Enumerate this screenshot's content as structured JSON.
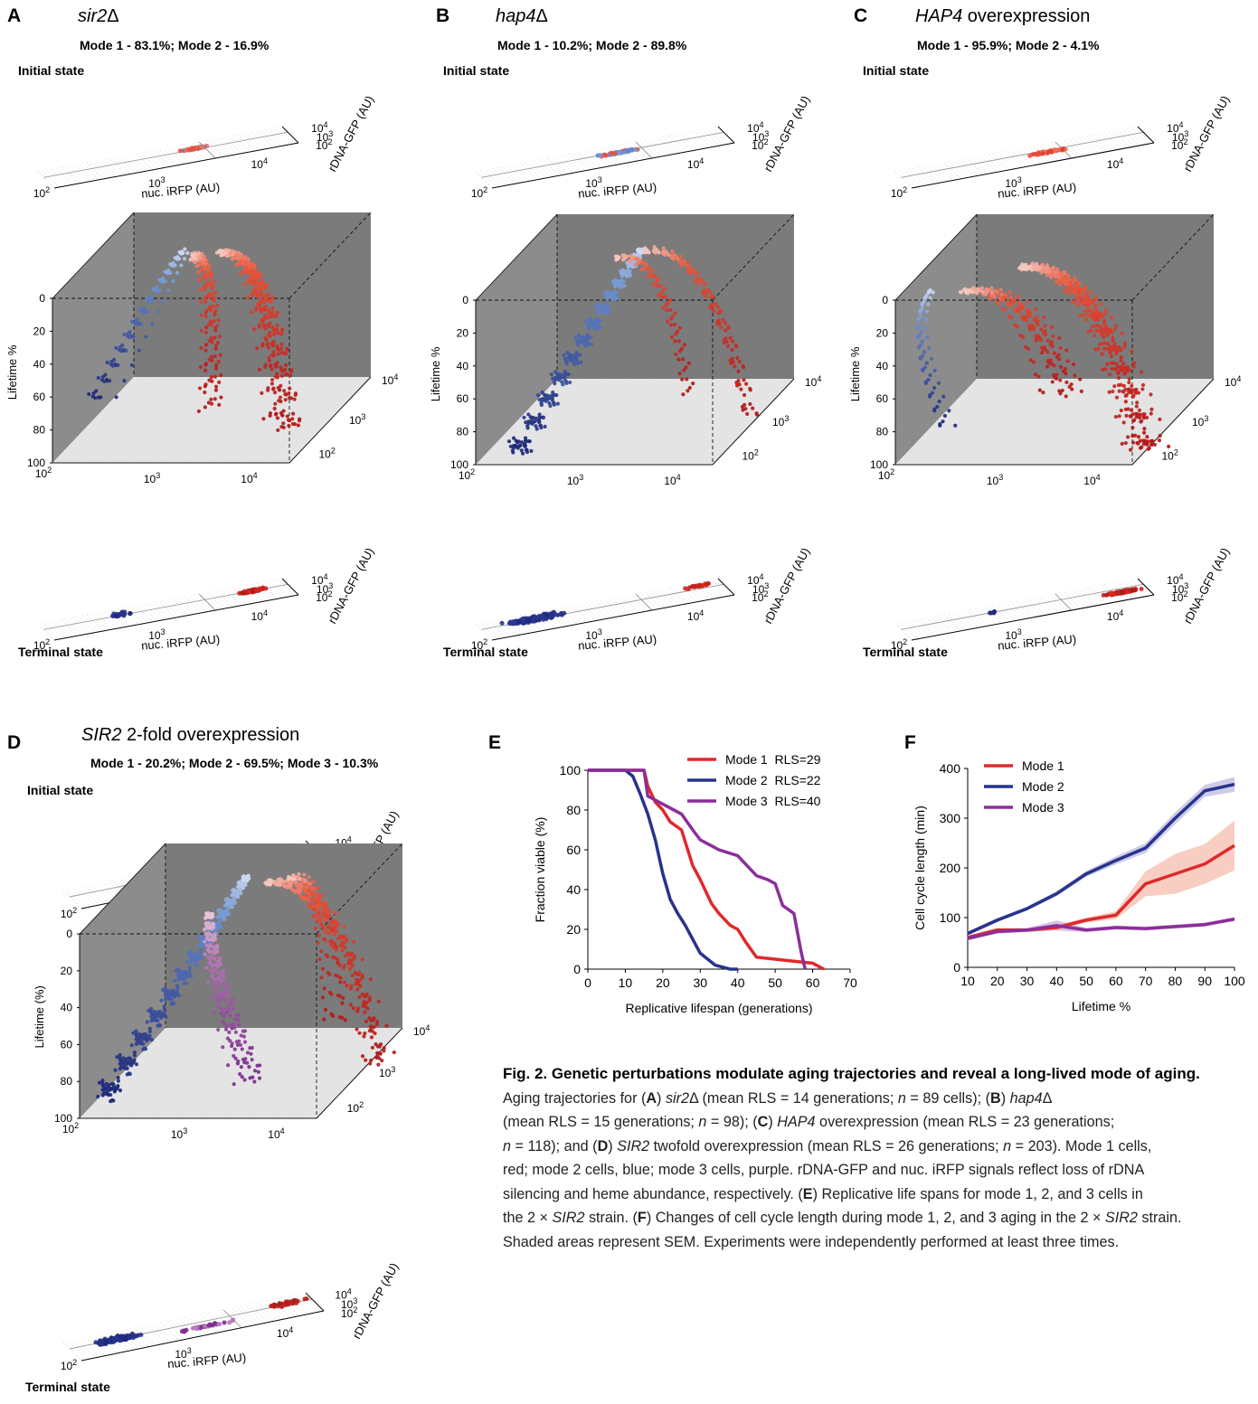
{
  "panels": [
    {
      "letter": "A",
      "title_italic": "sir2",
      "title_rest": "Δ",
      "title_rest_italic": false,
      "modes": "Mode 1 - 83.1%; Mode 2 - 16.9%",
      "initial_label": "Initial state",
      "terminal_label": "Terminal state"
    },
    {
      "letter": "B",
      "title_italic": "hap4",
      "title_rest": "Δ",
      "title_rest_italic": false,
      "modes": "Mode 1 - 10.2%; Mode 2 - 89.8%",
      "initial_label": "Initial state",
      "terminal_label": "Terminal state"
    },
    {
      "letter": "C",
      "title_italic": "HAP4",
      "title_rest": " overexpression",
      "title_rest_italic": false,
      "modes": "Mode 1 - 95.9%; Mode 2 - 4.1%",
      "initial_label": "Initial state",
      "terminal_label": "Terminal state"
    },
    {
      "letter": "D",
      "title_italic": "SIR2",
      "title_rest": " 2-fold overexpression",
      "title_rest_italic": false,
      "modes": "Mode 1 - 20.2%; Mode 2 - 69.5%; Mode 3 - 10.3%",
      "initial_label": "Initial state",
      "terminal_label": "Terminal state"
    }
  ],
  "axes3d": {
    "x_label": "nuc. iRFP (AU)",
    "y_label": "rDNA-GFP (AU)",
    "z_label_abc": "Lifetime %",
    "z_label_d": "Lifetime (%)",
    "x_ticks": [
      "10",
      "10",
      "10"
    ],
    "x_ticks_exp": [
      "2",
      "3",
      "4"
    ],
    "z_ticks": [
      "0",
      "20",
      "40",
      "60",
      "80",
      "100"
    ]
  },
  "mode_colors": {
    "mode1": "#d7261f",
    "mode2": "#28338c",
    "mode3": "#7b2a8e",
    "mode1_light": "#f7b6a8",
    "mode2_light": "#9fb8e2"
  },
  "chart_data": [
    {
      "panel": "E",
      "type": "line",
      "xlabel": "Replicative lifespan (generations)",
      "ylabel": "Fraction viable (%)",
      "xlim": [
        0,
        70
      ],
      "ylim": [
        0,
        100
      ],
      "x_ticks": [
        0,
        10,
        20,
        30,
        40,
        50,
        60,
        70
      ],
      "y_ticks": [
        0,
        20,
        40,
        60,
        80,
        100
      ],
      "legend_placement": "top-right",
      "series": [
        {
          "name": "Mode 1  RLS=29",
          "color": "#e0282b",
          "x": [
            0,
            15,
            16,
            18,
            20,
            22,
            25,
            28,
            30,
            33,
            35,
            38,
            40,
            42,
            45,
            50,
            55,
            60,
            62,
            63
          ],
          "y": [
            100,
            100,
            92,
            84,
            80,
            74,
            70,
            52,
            45,
            33,
            28,
            22,
            20,
            14,
            6,
            5,
            4,
            3,
            1,
            0
          ]
        },
        {
          "name": "Mode 2  RLS=22",
          "color": "#28338c",
          "x": [
            0,
            10,
            12,
            14,
            16,
            18,
            20,
            22,
            24,
            26,
            28,
            30,
            32,
            34,
            36,
            38,
            40
          ],
          "y": [
            100,
            100,
            97,
            88,
            78,
            65,
            48,
            35,
            28,
            22,
            15,
            8,
            5,
            2,
            1,
            0,
            0
          ]
        },
        {
          "name": "Mode 3  RLS=40",
          "color": "#8b2e9a",
          "x": [
            0,
            15,
            16,
            18,
            20,
            25,
            28,
            30,
            33,
            35,
            40,
            45,
            48,
            50,
            52,
            55,
            56,
            57,
            58
          ],
          "y": [
            100,
            100,
            87,
            85,
            83,
            78,
            70,
            65,
            62,
            60,
            57,
            47,
            45,
            43,
            32,
            28,
            18,
            8,
            0
          ]
        }
      ]
    },
    {
      "panel": "F",
      "type": "line",
      "xlabel": "Lifetime %",
      "ylabel": "Cell cycle length (min)",
      "xlim": [
        10,
        100
      ],
      "ylim": [
        0,
        400
      ],
      "x_ticks": [
        10,
        20,
        30,
        40,
        50,
        60,
        70,
        80,
        90,
        100
      ],
      "y_ticks": [
        0,
        100,
        200,
        300,
        400
      ],
      "legend_placement": "top-left",
      "shaded": "SEM",
      "series": [
        {
          "name": "Mode 1",
          "color": "#e0282b",
          "band_color": "#f5b8a8",
          "x": [
            10,
            20,
            30,
            40,
            50,
            60,
            70,
            80,
            90,
            100
          ],
          "y": [
            60,
            75,
            75,
            80,
            95,
            105,
            168,
            188,
            208,
            245
          ],
          "sem": [
            4,
            4,
            4,
            4,
            5,
            8,
            25,
            40,
            40,
            50
          ]
        },
        {
          "name": "Mode 2",
          "color": "#28338c",
          "band_color": "#b9b6df",
          "x": [
            10,
            20,
            30,
            40,
            50,
            60,
            70,
            80,
            90,
            100
          ],
          "y": [
            68,
            95,
            118,
            148,
            188,
            215,
            240,
            300,
            355,
            368
          ],
          "sem": [
            4,
            4,
            4,
            5,
            6,
            8,
            10,
            12,
            12,
            15
          ]
        },
        {
          "name": "Mode 3",
          "color": "#8b2e9a",
          "band_color": "#c9a6d2",
          "x": [
            10,
            20,
            30,
            40,
            50,
            60,
            70,
            80,
            90,
            100
          ],
          "y": [
            58,
            72,
            75,
            84,
            75,
            80,
            78,
            82,
            86,
            97
          ],
          "sem": [
            4,
            4,
            4,
            10,
            4,
            4,
            4,
            4,
            4,
            4
          ]
        }
      ]
    }
  ],
  "panel_e_letter": "E",
  "panel_f_letter": "F",
  "caption": {
    "title": "Fig. 2. Genetic perturbations modulate aging trajectories and reveal a long-lived mode of aging.",
    "lines": [
      "Aging trajectories for (A) sir2Δ (mean RLS = 14 generations; n = 89 cells); (B) hap4Δ",
      "(mean RLS = 15 generations; n = 98); (C) HAP4 overexpression (mean RLS = 23 generations;",
      "n = 118); and (D) SIR2 twofold overexpression (mean RLS = 26 generations; n = 203). Mode 1 cells,",
      "red; mode 2 cells, blue; mode 3 cells, purple. rDNA-GFP and nuc. iRFP signals reflect loss of rDNA",
      "silencing and heme abundance, respectively. (E) Replicative life spans for mode 1, 2, and 3 cells in",
      "the 2 × SIR2 strain. (F) Changes of cell cycle length during mode 1, 2, and 3 aging in the 2 × SIR2 strain.",
      "Shaded areas represent SEM. Experiments were independently performed at least three times."
    ]
  }
}
